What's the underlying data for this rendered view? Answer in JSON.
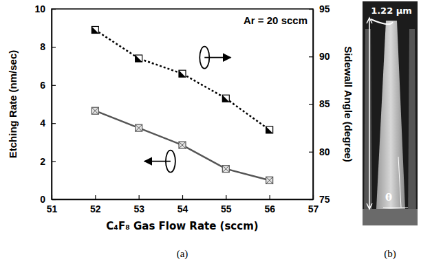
{
  "chart_data": {
    "type": "line",
    "x_label": "C₄F₈ Gas Flow Rate (sccm)",
    "y_label": "Etching Rate (nm/sec)",
    "y2_label": "Sidewall Angle (degree)",
    "annotations": [
      "Ar = 20 sccm"
    ],
    "x": [
      52,
      53,
      54,
      55,
      56
    ],
    "xlim": [
      51,
      57
    ],
    "xticks": [
      51,
      52,
      53,
      54,
      55,
      56,
      57
    ],
    "ylim": [
      0,
      10
    ],
    "yticks": [
      0,
      2,
      4,
      6,
      8,
      10
    ],
    "y2lim": [
      75,
      95
    ],
    "y2ticks": [
      75,
      80,
      85,
      90,
      95
    ],
    "grid": false,
    "series": [
      {
        "color": "#555555",
        "marker": "square-x",
        "line_style": "solid",
        "values": [
          4.65,
          3.75,
          2.85,
          1.6,
          1.0
        ]
      },
      {
        "color": "#000000",
        "marker": "half-square",
        "line_style": "dotted",
        "axis": "y2",
        "values": [
          92.8,
          89.8,
          88.2,
          85.6,
          82.3
        ]
      }
    ]
  },
  "panel_labels": [
    "(a)",
    "(b)"
  ],
  "sem_image": {
    "width_label": "1.22 µm",
    "angle_label": "θ"
  }
}
